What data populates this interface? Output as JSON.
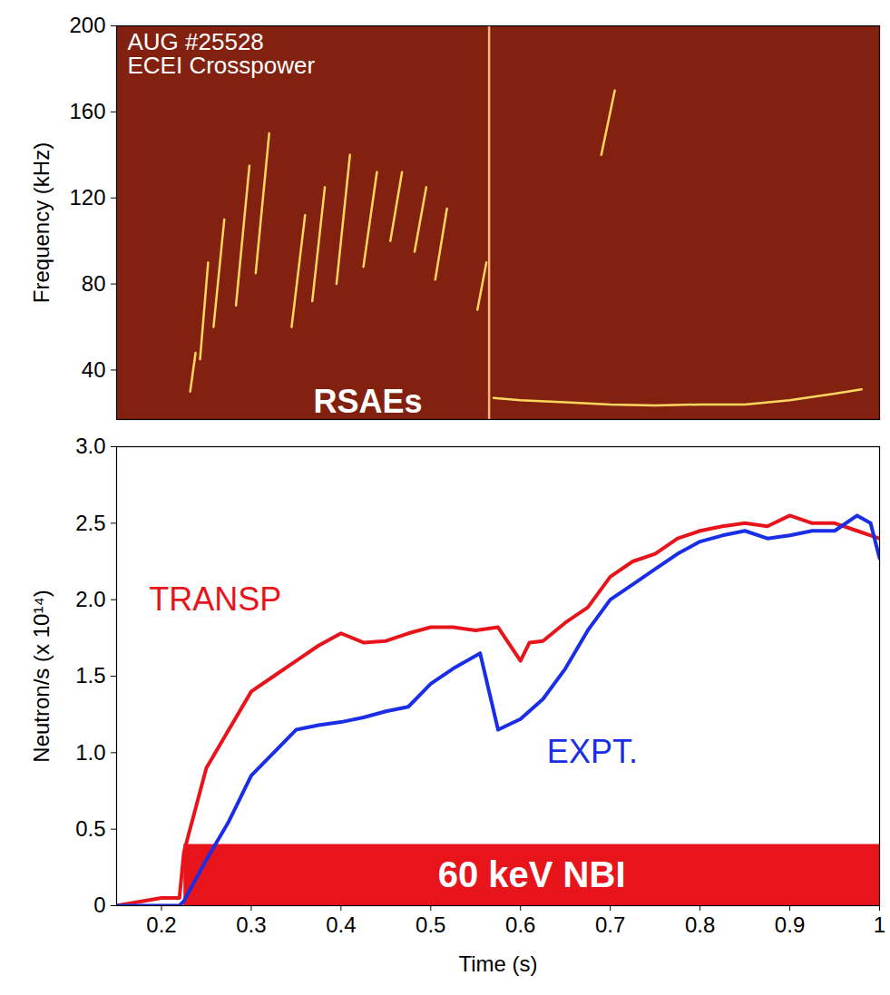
{
  "chart_data": [
    {
      "type": "line",
      "title": "AUG #25528",
      "subtitle": "ECEI Crosspower",
      "ylabel": "Frequency (kHz)",
      "xlim": [
        0.15,
        1.0
      ],
      "ylim": [
        17,
        200
      ],
      "yticks": [
        40,
        80,
        120,
        160,
        200
      ],
      "tick_labels": "y",
      "annotations": [
        {
          "text": "RSAEs",
          "x": 0.43,
          "y": 25,
          "color": "#ffffff"
        }
      ],
      "series": [
        {
          "color": "#ffd75e",
          "x": [
            0.232,
            0.238
          ],
          "values": [
            30,
            48
          ]
        },
        {
          "color": "#ffd75e",
          "x": [
            0.243,
            0.252
          ],
          "values": [
            45,
            90
          ]
        },
        {
          "color": "#ffd75e",
          "x": [
            0.258,
            0.27
          ],
          "values": [
            60,
            110
          ]
        },
        {
          "color": "#ffd75e",
          "x": [
            0.283,
            0.298
          ],
          "values": [
            70,
            135
          ]
        },
        {
          "color": "#ffd75e",
          "x": [
            0.305,
            0.32
          ],
          "values": [
            85,
            150
          ]
        },
        {
          "color": "#ffd75e",
          "x": [
            0.345,
            0.36
          ],
          "values": [
            60,
            112
          ]
        },
        {
          "color": "#ffd75e",
          "x": [
            0.368,
            0.382
          ],
          "values": [
            72,
            125
          ]
        },
        {
          "color": "#ffd75e",
          "x": [
            0.395,
            0.41
          ],
          "values": [
            80,
            140
          ]
        },
        {
          "color": "#ffd75e",
          "x": [
            0.425,
            0.44
          ],
          "values": [
            88,
            132
          ]
        },
        {
          "color": "#ffd75e",
          "x": [
            0.455,
            0.468
          ],
          "values": [
            100,
            132
          ]
        },
        {
          "color": "#ffd75e",
          "x": [
            0.482,
            0.495
          ],
          "values": [
            95,
            125
          ]
        },
        {
          "color": "#ffd75e",
          "x": [
            0.505,
            0.518
          ],
          "values": [
            82,
            115
          ]
        },
        {
          "color": "#ffd75e",
          "x": [
            0.552,
            0.562
          ],
          "values": [
            68,
            90
          ]
        },
        {
          "color": "#ffd75e",
          "x": [
            0.69,
            0.705
          ],
          "values": [
            140,
            170
          ]
        },
        {
          "color": "#ffd75e",
          "x": [
            0.57,
            0.6,
            0.65,
            0.7,
            0.75,
            0.8,
            0.85,
            0.9,
            0.95,
            0.98
          ],
          "values": [
            27,
            26,
            25,
            24,
            23.5,
            24,
            24,
            26,
            29,
            31
          ]
        },
        {
          "color": "#ffb080",
          "x": [
            0.565,
            0.565
          ],
          "values": [
            17,
            200
          ]
        }
      ]
    },
    {
      "type": "line",
      "xlabel": "Time (s)",
      "ylabel": "Neutron/s (x 10¹⁴)",
      "xlim": [
        0.15,
        1.0
      ],
      "ylim": [
        0,
        3.0
      ],
      "xticks": [
        0.2,
        0.3,
        0.4,
        0.5,
        0.6,
        0.7,
        0.8,
        0.9,
        1
      ],
      "yticks": [
        0,
        0.5,
        {
          "value": 1,
          "label": "1.0"
        },
        1.5,
        {
          "value": 2,
          "label": "2.0"
        },
        2.5,
        {
          "value": 3,
          "label": "3.0"
        }
      ],
      "bands": [
        {
          "text": "60 keV NBI",
          "x": [
            0.225,
            1.0
          ],
          "y": [
            0,
            0.4
          ],
          "color": "#e8141c"
        }
      ],
      "series": [
        {
          "name": "TRANSP",
          "color": "#e8141c",
          "label_at": [
            0.26,
            2.0
          ],
          "x": [
            0.15,
            0.2,
            0.22,
            0.225,
            0.25,
            0.275,
            0.3,
            0.325,
            0.35,
            0.375,
            0.4,
            0.425,
            0.45,
            0.475,
            0.5,
            0.525,
            0.55,
            0.575,
            0.6,
            0.61,
            0.625,
            0.65,
            0.675,
            0.7,
            0.725,
            0.75,
            0.775,
            0.8,
            0.825,
            0.85,
            0.875,
            0.9,
            0.925,
            0.95,
            0.975,
            1.0
          ],
          "values": [
            0,
            0.05,
            0.05,
            0.35,
            0.9,
            1.15,
            1.4,
            1.5,
            1.6,
            1.7,
            1.78,
            1.72,
            1.73,
            1.78,
            1.82,
            1.82,
            1.8,
            1.82,
            1.6,
            1.72,
            1.73,
            1.85,
            1.95,
            2.15,
            2.25,
            2.3,
            2.4,
            2.45,
            2.48,
            2.5,
            2.48,
            2.55,
            2.5,
            2.5,
            2.45,
            2.4
          ]
        },
        {
          "name": "EXPT.",
          "color": "#1a2ee6",
          "label_at": [
            0.68,
            1.0
          ],
          "x": [
            0.15,
            0.22,
            0.225,
            0.25,
            0.275,
            0.3,
            0.325,
            0.35,
            0.375,
            0.4,
            0.425,
            0.45,
            0.475,
            0.5,
            0.525,
            0.555,
            0.575,
            0.6,
            0.625,
            0.65,
            0.675,
            0.7,
            0.725,
            0.75,
            0.775,
            0.8,
            0.825,
            0.85,
            0.875,
            0.9,
            0.925,
            0.95,
            0.975,
            0.99,
            1.0
          ],
          "values": [
            0,
            0,
            0.03,
            0.3,
            0.55,
            0.85,
            1.0,
            1.15,
            1.18,
            1.2,
            1.23,
            1.27,
            1.3,
            1.45,
            1.55,
            1.65,
            1.15,
            1.22,
            1.35,
            1.55,
            1.8,
            2.0,
            2.1,
            2.2,
            2.3,
            2.38,
            2.42,
            2.45,
            2.4,
            2.42,
            2.45,
            2.45,
            2.55,
            2.5,
            2.27
          ]
        }
      ]
    }
  ]
}
